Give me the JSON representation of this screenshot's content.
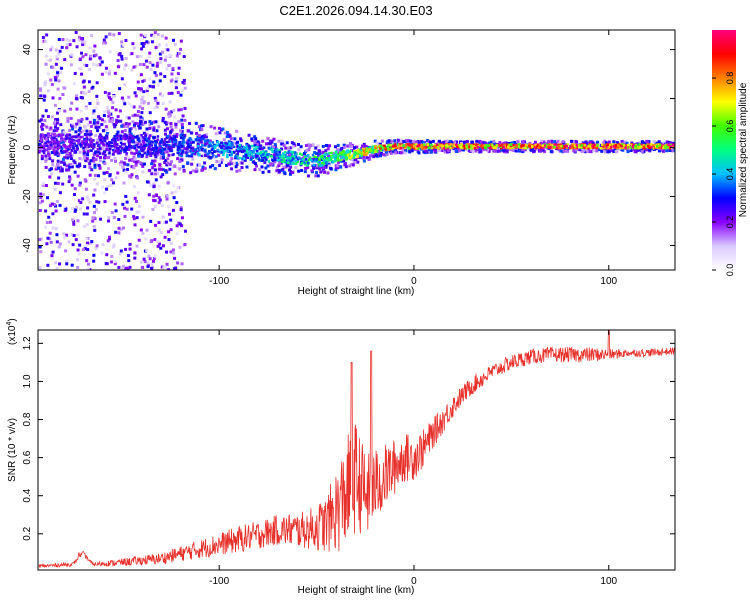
{
  "title": "C2E1.2026.094.14.30.E03",
  "chart_data": [
    {
      "type": "heatmap",
      "xlabel": "Height of straight line (km)",
      "ylabel": "Frequency (Hz)",
      "xlim": [
        -193,
        134
      ],
      "ylim": [
        -50,
        48
      ],
      "xticks": [
        -100,
        0,
        100
      ],
      "xtick_labels": [
        "-100",
        "0",
        "100"
      ],
      "yticks": [
        -40,
        -20,
        0,
        20,
        40
      ],
      "ytick_labels": [
        "-40",
        "-20",
        "0",
        "20",
        "40"
      ],
      "ridge": {
        "x": [
          -193,
          -150,
          -120,
          -100,
          -80,
          -60,
          -50,
          -40,
          -30,
          -20,
          -10,
          0,
          20,
          60,
          100,
          134
        ],
        "freq": [
          2,
          2,
          1,
          0,
          -2,
          -4,
          -5,
          -3,
          -2,
          0,
          1,
          1,
          1,
          1,
          1,
          1
        ],
        "width": [
          5,
          5,
          5,
          4,
          3.5,
          3,
          3,
          2.5,
          2,
          1.5,
          1.2,
          1.2,
          1,
          1,
          1,
          1
        ],
        "amplitude": [
          0.25,
          0.3,
          0.35,
          0.4,
          0.45,
          0.5,
          0.55,
          0.6,
          0.7,
          0.8,
          0.9,
          0.9,
          0.92,
          0.95,
          0.95,
          0.95
        ]
      },
      "colorbar": {
        "label": "Normalized spectral amplitude",
        "range": [
          0,
          1
        ],
        "ticks": [
          0.0,
          0.2,
          0.4,
          0.6,
          0.8
        ],
        "tick_labels": [
          "0.0",
          "0.2",
          "0.4",
          "0.6",
          "0.8"
        ],
        "colors": [
          "#ffffff",
          "#d9c8ff",
          "#8800ff",
          "#0000ff",
          "#00c0ff",
          "#00ff80",
          "#40ff00",
          "#ffff00",
          "#ff8000",
          "#ff0000",
          "#ff0080"
        ]
      }
    },
    {
      "type": "line",
      "xlabel": "Height of straight line (km)",
      "ylabel": "SNR (10 * v/v)",
      "y_multiplier_label": "(x10",
      "y_multiplier_exponent": "4",
      "y_multiplier_close": ")",
      "xlim": [
        -193,
        134
      ],
      "ylim": [
        0.01,
        1.27
      ],
      "xticks": [
        -100,
        0,
        100
      ],
      "xtick_labels": [
        "-100",
        "0",
        "100"
      ],
      "yticks": [
        0.2,
        0.4,
        0.6,
        0.8,
        1.0,
        1.2
      ],
      "ytick_labels": [
        "0.2",
        "0.4",
        "0.6",
        "0.8",
        "1.0",
        "1.2"
      ],
      "color": "#e8302a",
      "series": [
        {
          "name": "SNR",
          "x": [
            -193,
            -175,
            -170,
            -165,
            -150,
            -130,
            -110,
            -90,
            -70,
            -55,
            -45,
            -38,
            -33,
            -30,
            -27,
            -24,
            -20,
            -15,
            -10,
            -5,
            0,
            5,
            10,
            15,
            20,
            25,
            30,
            40,
            50,
            60,
            70,
            80,
            90,
            100,
            110,
            120,
            134
          ],
          "y": [
            0.03,
            0.04,
            0.1,
            0.04,
            0.05,
            0.07,
            0.12,
            0.17,
            0.22,
            0.22,
            0.25,
            0.35,
            0.45,
            0.5,
            0.45,
            0.4,
            0.45,
            0.5,
            0.55,
            0.6,
            0.6,
            0.65,
            0.73,
            0.8,
            0.87,
            0.93,
            0.98,
            1.05,
            1.1,
            1.13,
            1.14,
            1.14,
            1.14,
            1.14,
            1.15,
            1.15,
            1.16
          ],
          "noise": [
            0.01,
            0.01,
            0.01,
            0.01,
            0.02,
            0.03,
            0.05,
            0.07,
            0.08,
            0.1,
            0.15,
            0.25,
            0.3,
            0.3,
            0.25,
            0.22,
            0.2,
            0.17,
            0.15,
            0.13,
            0.12,
            0.1,
            0.08,
            0.07,
            0.06,
            0.05,
            0.05,
            0.04,
            0.04,
            0.04,
            0.04,
            0.04,
            0.04,
            0.03,
            0.02,
            0.02,
            0.02
          ],
          "peaks": [
            {
              "x": -172,
              "y": 0.1
            },
            {
              "x": -32,
              "y": 1.1
            },
            {
              "x": -22,
              "y": 1.16
            },
            {
              "x": 100,
              "y": 1.27
            }
          ]
        }
      ]
    }
  ]
}
